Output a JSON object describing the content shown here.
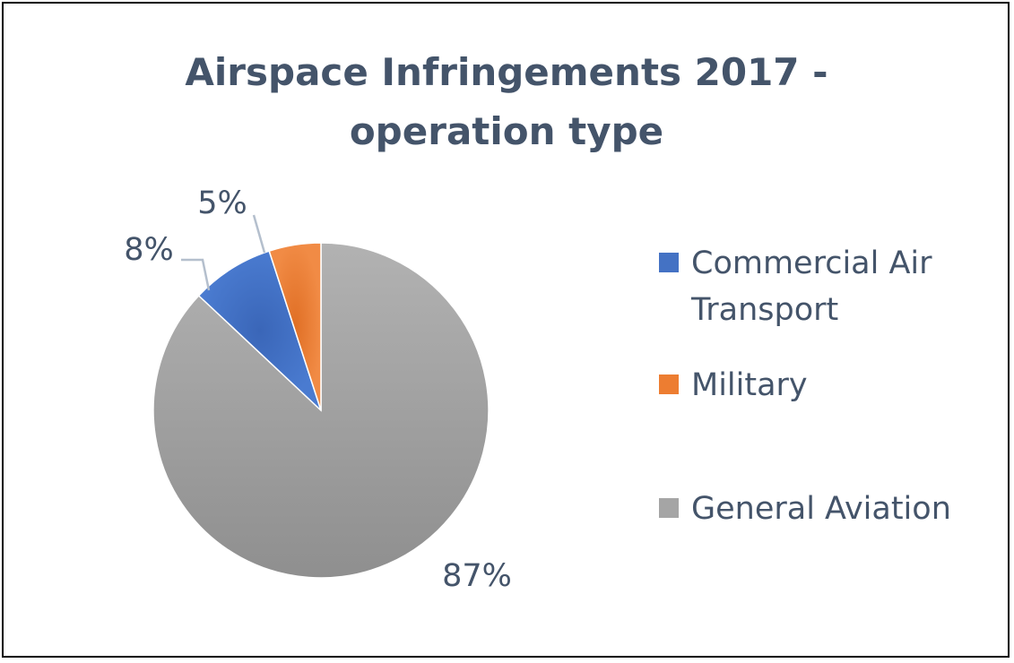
{
  "chart_data": {
    "type": "pie",
    "title": "Airspace Infringements 2017 - operation type",
    "title_lines": [
      "Airspace Infringements 2017 -",
      "operation type"
    ],
    "categories": [
      "Commercial Air Transport",
      "Military",
      "General Aviation"
    ],
    "legend_labels": [
      [
        "Commercial Air",
        "Transport"
      ],
      [
        "Military"
      ],
      [
        "General Aviation"
      ]
    ],
    "values": [
      8,
      5,
      87
    ],
    "data_labels": [
      "8%",
      "5%",
      "87%"
    ],
    "colors": [
      "#4472c4",
      "#ed7d31",
      "#a5a5a5"
    ],
    "start_angle_deg": 0,
    "legend_position": "right"
  }
}
